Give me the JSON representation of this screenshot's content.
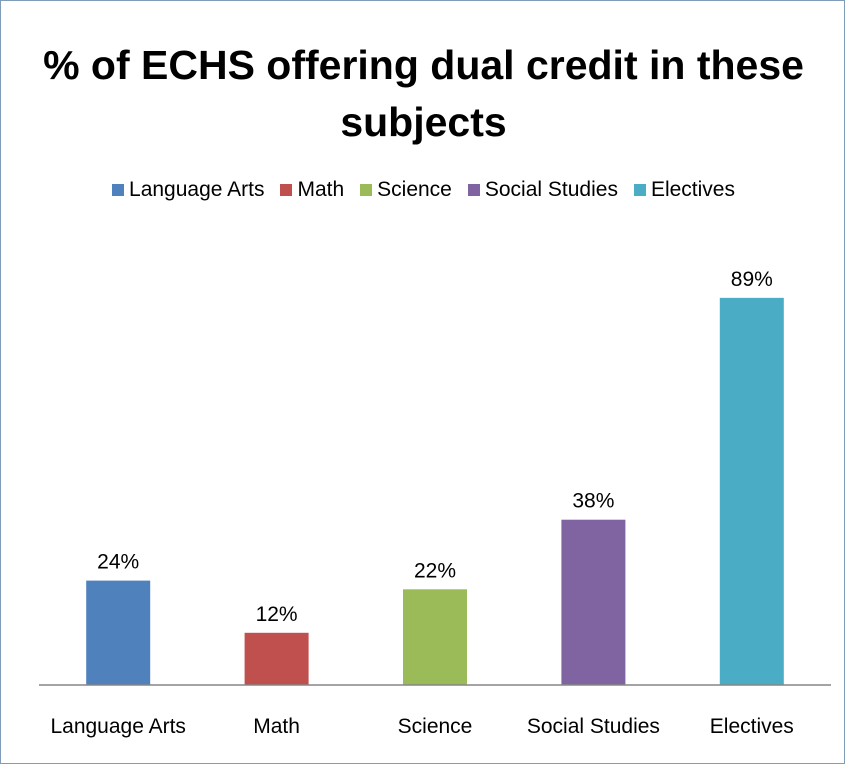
{
  "chart_data": {
    "type": "bar",
    "title": "% of ECHS offering dual credit in these subjects",
    "categories": [
      "Language Arts",
      "Math",
      "Science",
      "Social Studies",
      "Electives"
    ],
    "values": [
      24,
      12,
      22,
      38,
      89
    ],
    "value_labels": [
      "24%",
      "12%",
      "22%",
      "38%",
      "89%"
    ],
    "colors": [
      "#4f81bd",
      "#c0504d",
      "#9bbb59",
      "#8064a2",
      "#4bacc6"
    ],
    "ylim": [
      0,
      100
    ],
    "grid": false,
    "legend_position": "top",
    "xlabel": "",
    "ylabel": ""
  }
}
